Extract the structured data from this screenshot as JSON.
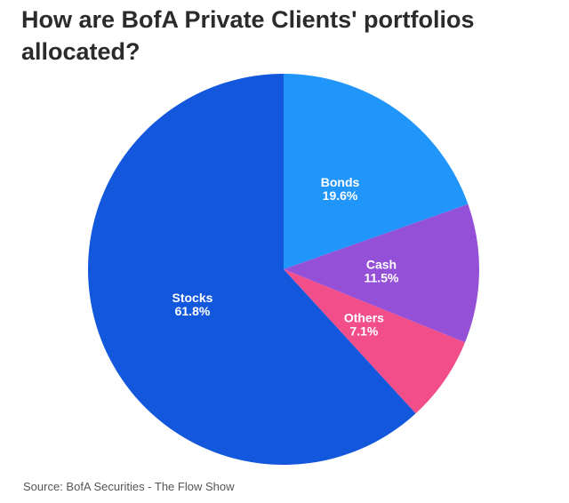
{
  "chart_data": {
    "type": "pie",
    "title": "How are BofA Private Clients' portfolios allocated?",
    "source": "Source: BofA Securities - The Flow Show",
    "start": "top, clockwise",
    "slices": [
      {
        "label": "Bonds",
        "value": 19.6,
        "display": "19.6%",
        "color": "#2196FA"
      },
      {
        "label": "Cash",
        "value": 11.5,
        "display": "11.5%",
        "color": "#9550D8"
      },
      {
        "label": "Others",
        "value": 7.1,
        "display": "7.1%",
        "color": "#F24F8A"
      },
      {
        "label": "Stocks",
        "value": 61.8,
        "display": "61.8%",
        "color": "#1257DC"
      }
    ]
  }
}
